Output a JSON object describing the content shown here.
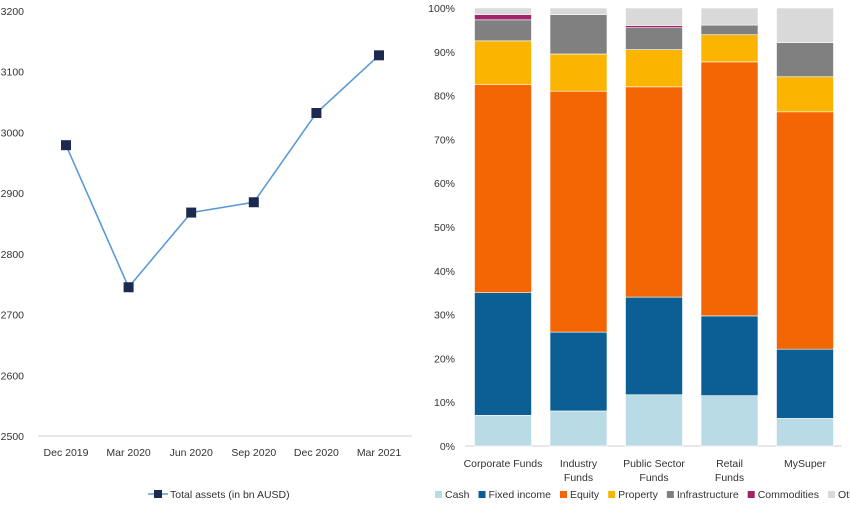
{
  "chart_data": [
    {
      "type": "line",
      "title": "",
      "xlabel": "",
      "ylabel": "",
      "ylim": [
        2500,
        3200
      ],
      "yticks": [
        "2500",
        "2600",
        "2700",
        "2800",
        "2900",
        "3000",
        "3100",
        "3200"
      ],
      "grid": false,
      "legend_position": "bottom",
      "categories": [
        "Dec 2019",
        "Mar 2020",
        "Jun 2020",
        "Sep 2020",
        "Dec 2020",
        "Mar 2021"
      ],
      "series": [
        {
          "name": "Total assets (in bn AUSD)",
          "values": [
            2979,
            2745,
            2868,
            2885,
            3032,
            3127
          ],
          "line_color": "#5b9bd5",
          "marker_color": "#1b2a4e"
        }
      ]
    },
    {
      "type": "bar",
      "stacked": true,
      "title": "",
      "xlabel": "",
      "ylabel": "",
      "ylim": [
        0,
        100
      ],
      "yticks": [
        "0%",
        "10%",
        "20%",
        "30%",
        "40%",
        "50%",
        "60%",
        "70%",
        "80%",
        "90%",
        "100%"
      ],
      "grid": false,
      "legend_position": "bottom",
      "categories": [
        [
          "Corporate Funds"
        ],
        [
          "Industry",
          "Funds"
        ],
        [
          "Public Sector",
          "Funds"
        ],
        [
          "Retail",
          "Funds"
        ],
        [
          "MySuper"
        ]
      ],
      "series": [
        {
          "name": "Cash",
          "color": "#b8dbe6",
          "values": [
            7,
            8,
            11.7,
            11.5,
            6.3
          ]
        },
        {
          "name": "Fixed income",
          "color": "#0c5f94",
          "values": [
            28,
            18,
            22.3,
            18.2,
            15.8
          ]
        },
        {
          "name": "Equity",
          "color": "#f46603",
          "values": [
            47.5,
            55,
            48,
            58,
            54.2
          ]
        },
        {
          "name": "Property",
          "color": "#fbb400",
          "values": [
            10,
            8.5,
            8.5,
            6.2,
            8
          ]
        },
        {
          "name": "Infrastructure",
          "color": "#808080",
          "values": [
            4.8,
            9,
            5,
            2.2,
            7.8
          ]
        },
        {
          "name": "Commodities",
          "color": "#a0246b",
          "values": [
            1.2,
            0,
            0.5,
            0,
            0
          ]
        },
        {
          "name": "Other",
          "color": "#d9d9d9",
          "values": [
            1.5,
            1.5,
            4,
            3.9,
            7.9
          ]
        }
      ]
    }
  ]
}
